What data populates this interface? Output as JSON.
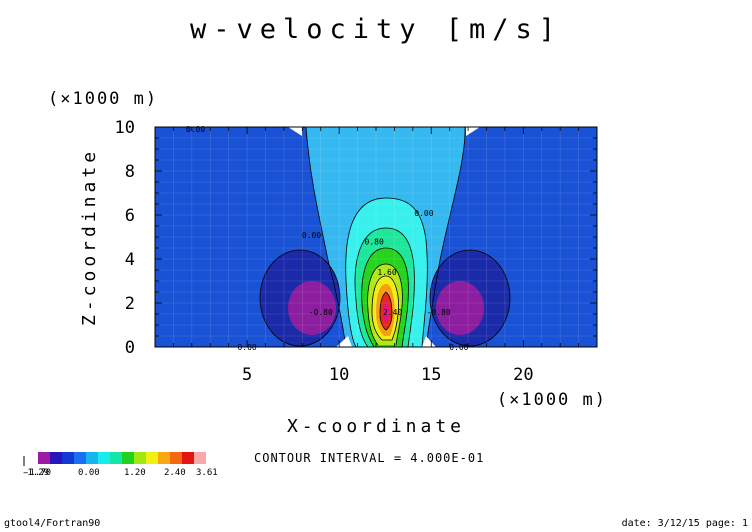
{
  "chart_data": {
    "type": "heatmap",
    "title": "w-velocity [m/s]",
    "xlabel": "X-coordinate",
    "ylabel": "Z-coordinate",
    "x_unit": "(×1000 m)",
    "y_unit": "(×1000 m)",
    "xlim": [
      0,
      24
    ],
    "ylim": [
      0,
      10
    ],
    "x_ticks": [
      5,
      10,
      15,
      20
    ],
    "y_ticks": [
      0,
      2,
      4,
      6,
      8,
      10
    ],
    "contour_interval_text": "CONTOUR INTERVAL = 4.000E-01",
    "contour_labels": [
      {
        "text": "0.00",
        "x": 2.2,
        "z": 9.9
      },
      {
        "text": "0.00",
        "x": 8.5,
        "z": 5.1
      },
      {
        "text": "0.00",
        "x": 14.6,
        "z": 6.1
      },
      {
        "text": "0.80",
        "x": 11.9,
        "z": 4.8
      },
      {
        "text": "1.60",
        "x": 12.6,
        "z": 3.4
      },
      {
        "text": "2.40",
        "x": 12.9,
        "z": 1.6
      },
      {
        "text": "-0.80",
        "x": 9.0,
        "z": 1.6
      },
      {
        "text": "-0.80",
        "x": 15.4,
        "z": 1.6
      },
      {
        "text": "0.00",
        "x": 5.0,
        "z": 0.0
      },
      {
        "text": "0.00",
        "x": 16.5,
        "z": 0.0
      }
    ],
    "colorbar": {
      "min_label": "-1.29",
      "min_label_overprint": "-1.70",
      "tick_labels": [
        "0.00",
        "1.20",
        "2.40"
      ],
      "max_label": "3.61",
      "colors": [
        "#9a1aa6",
        "#2a16b8",
        "#1238d6",
        "#1a6ef0",
        "#18b6ee",
        "#19ecec",
        "#14e6a6",
        "#1ed21e",
        "#a2e614",
        "#f0f012",
        "#f7a812",
        "#f46810",
        "#e21414",
        "#f8a8a8"
      ]
    },
    "contour_colors": {
      "lowest": "#8e1ea0",
      "negative": "#1a2aa8",
      "background": "#1a52d6",
      "positive_low": "#36b8f0",
      "level_080": "#38f0ec",
      "level_120": "#1ee69a",
      "level_160": "#26d420",
      "level_200": "#b2e818",
      "level_240": "#f0ec10",
      "level_280": "#f4a010",
      "level_320": "#e62a18",
      "peak": "#e4108e"
    }
  },
  "footer": {
    "left": "gtool4/Fortran90",
    "right": "date: 3/12/15 page: 1"
  }
}
